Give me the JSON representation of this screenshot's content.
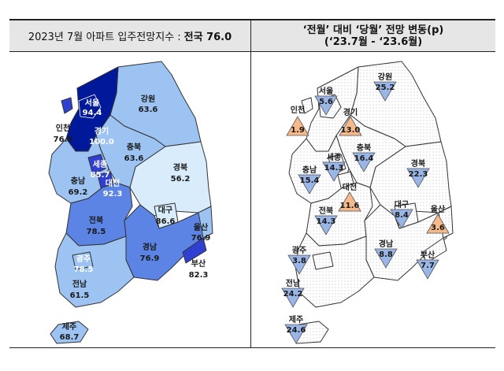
{
  "header": {
    "left_prefix": "2023년 7월 아파트 입주전망지수 :",
    "left_value": "전국 76.0",
    "right_line1": "‘전월’ 대비 ‘당월’ 전망 변동(p)",
    "right_line2": "(‘23.7월  -  ‘23.6월)"
  },
  "colors": {
    "very_high": "#00189a",
    "high": "#2f3fd0",
    "mid": "#5b84e4",
    "low": "#9cc3f2",
    "very_low": "#d8ecfb",
    "down_triangle": "#9ab6e6",
    "up_triangle": "#f6b98a",
    "dotted_fill": "#eef1f8"
  },
  "left_map": {
    "regions": [
      {
        "name": "서울",
        "value": "94.4"
      },
      {
        "name": "인천",
        "value": "76.9"
      },
      {
        "name": "경기",
        "value": "100.0"
      },
      {
        "name": "강원",
        "value": "63.6"
      },
      {
        "name": "충북",
        "value": "63.6"
      },
      {
        "name": "세종",
        "value": "85.7"
      },
      {
        "name": "대전",
        "value": "92.3"
      },
      {
        "name": "충남",
        "value": "69.2"
      },
      {
        "name": "경북",
        "value": "56.2"
      },
      {
        "name": "대구",
        "value": "86.6"
      },
      {
        "name": "울산",
        "value": "76.9"
      },
      {
        "name": "전북",
        "value": "78.5"
      },
      {
        "name": "경남",
        "value": "76.9"
      },
      {
        "name": "부산",
        "value": "82.3"
      },
      {
        "name": "광주",
        "value": "78.5"
      },
      {
        "name": "전남",
        "value": "61.5"
      },
      {
        "name": "제주",
        "value": "68.7"
      }
    ]
  },
  "right_map": {
    "regions": [
      {
        "name": "서울",
        "value": "5.6",
        "direction": "down"
      },
      {
        "name": "인천",
        "value": "1.9",
        "direction": "up"
      },
      {
        "name": "경기",
        "value": "13.0",
        "direction": "up"
      },
      {
        "name": "강원",
        "value": "25.2",
        "direction": "down"
      },
      {
        "name": "충북",
        "value": "16.4",
        "direction": "down"
      },
      {
        "name": "세종",
        "value": "14.3",
        "direction": "down"
      },
      {
        "name": "대전",
        "value": "11.6",
        "direction": "up"
      },
      {
        "name": "충남",
        "value": "15.4",
        "direction": "down"
      },
      {
        "name": "경북",
        "value": "22.3",
        "direction": "down"
      },
      {
        "name": "대구",
        "value": "8.4",
        "direction": "down"
      },
      {
        "name": "울산",
        "value": "3.6",
        "direction": "up"
      },
      {
        "name": "전북",
        "value": "14.3",
        "direction": "down"
      },
      {
        "name": "경남",
        "value": "8.8",
        "direction": "down"
      },
      {
        "name": "부산",
        "value": "7.7",
        "direction": "down"
      },
      {
        "name": "광주",
        "value": "3.8",
        "direction": "down"
      },
      {
        "name": "전남",
        "value": "24.2",
        "direction": "down"
      },
      {
        "name": "제주",
        "value": "24.6",
        "direction": "down"
      }
    ]
  }
}
